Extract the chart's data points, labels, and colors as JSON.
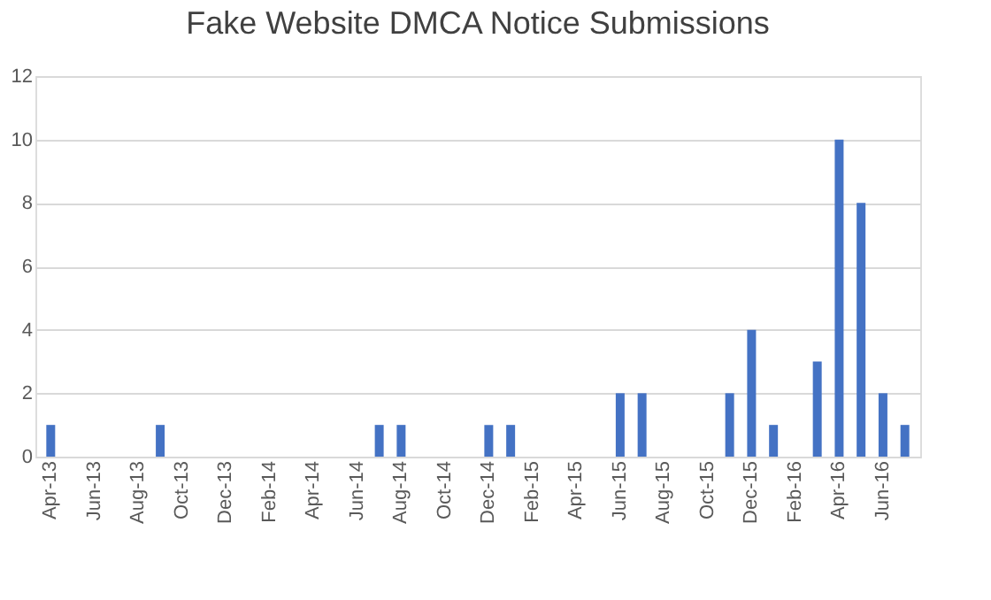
{
  "chart_data": {
    "type": "bar",
    "title": "Fake Website DMCA Notice Submissions",
    "categories": [
      "Apr-13",
      null,
      "Jun-13",
      null,
      "Aug-13",
      null,
      "Oct-13",
      null,
      "Dec-13",
      null,
      "Feb-14",
      null,
      "Apr-14",
      null,
      "Jun-14",
      null,
      "Aug-14",
      null,
      "Oct-14",
      null,
      "Dec-14",
      null,
      "Feb-15",
      null,
      "Apr-15",
      null,
      "Jun-15",
      null,
      "Aug-15",
      null,
      "Oct-15",
      null,
      "Dec-15",
      null,
      "Feb-16",
      null,
      "Apr-16",
      null,
      "Jun-16",
      null
    ],
    "values": [
      1,
      0,
      0,
      0,
      0,
      1,
      0,
      0,
      0,
      0,
      0,
      0,
      0,
      0,
      0,
      1,
      1,
      0,
      0,
      0,
      1,
      1,
      0,
      0,
      0,
      0,
      2,
      2,
      0,
      0,
      0,
      2,
      4,
      1,
      0,
      3,
      10,
      8,
      2,
      1
    ],
    "color": "#4472c4",
    "ylim": [
      0,
      12
    ],
    "yticks": [
      0,
      2,
      4,
      6,
      8,
      10,
      12
    ],
    "grid": "y"
  }
}
